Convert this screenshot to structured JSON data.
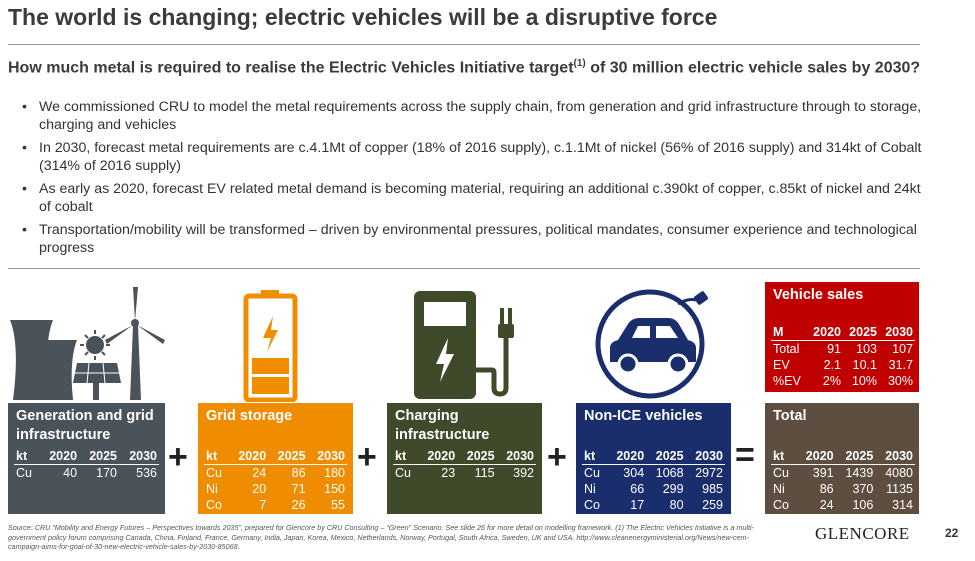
{
  "title": "The world is changing; electric vehicles will be a disruptive force",
  "subtitle_main": "How much metal is required to realise the Electric Vehicles Initiative target",
  "subtitle_sup": "(1)",
  "subtitle_rest": " of 30 million electric vehicle sales by 2030?",
  "bullets": [
    "We commissioned CRU to model the metal requirements across the supply chain, from generation and grid infrastructure through to storage, charging and vehicles",
    "In 2030, forecast metal requirements are c.4.1Mt of copper (18% of 2016 supply), c.1.1Mt of nickel (56% of 2016 supply) and 314kt of Cobalt (314% of 2016 supply)",
    "As early as 2020, forecast EV related metal demand is becoming material, requiring an additional c.390kt of copper, c.85kt of nickel and 24kt of cobalt",
    "Transportation/mobility will be transformed – driven by environmental pressures, political mandates, consumer experience and technological progress"
  ],
  "bullet_glyph": "•",
  "colors": {
    "generation": "#4a525a",
    "grid": "#f08c00",
    "charging": "#3f4a2a",
    "nonice": "#1a2e6e",
    "vehicle": "#c00000",
    "total": "#5e4e3f"
  },
  "panels": {
    "generation": {
      "title": "Generation and grid infrastructure",
      "header": [
        "kt",
        "2020",
        "2025",
        "2030"
      ],
      "rows": [
        [
          "Cu",
          "40",
          "170",
          "536"
        ]
      ]
    },
    "grid": {
      "title": "Grid storage",
      "header": [
        "kt",
        "2020",
        "2025",
        "2030"
      ],
      "rows": [
        [
          "Cu",
          "24",
          "86",
          "180"
        ],
        [
          "Ni",
          "20",
          "71",
          "150"
        ],
        [
          "Co",
          "7",
          "26",
          "55"
        ]
      ]
    },
    "charging": {
      "title": "Charging infrastructure",
      "header": [
        "kt",
        "2020",
        "2025",
        "2030"
      ],
      "rows": [
        [
          "Cu",
          "23",
          "115",
          "392"
        ]
      ]
    },
    "nonice": {
      "title": "Non-ICE vehicles",
      "header": [
        "kt",
        "2020",
        "2025",
        "2030"
      ],
      "rows": [
        [
          "Cu",
          "304",
          "1068",
          "2972"
        ],
        [
          "Ni",
          "66",
          "299",
          "985"
        ],
        [
          "Co",
          "17",
          "80",
          "259"
        ]
      ]
    },
    "vehicle": {
      "title": "Vehicle sales",
      "header": [
        "M",
        "2020",
        "2025",
        "2030"
      ],
      "rows": [
        [
          "Total",
          "91",
          "103",
          "107"
        ],
        [
          "EV",
          "2.1",
          "10.1",
          "31.7"
        ],
        [
          "%EV",
          "2%",
          "10%",
          "30%"
        ]
      ]
    },
    "total": {
      "title": "Total",
      "header": [
        "kt",
        "2020",
        "2025",
        "2030"
      ],
      "rows": [
        [
          "Cu",
          "391",
          "1439",
          "4080"
        ],
        [
          "Ni",
          "86",
          "370",
          "1135"
        ],
        [
          "Co",
          "24",
          "106",
          "314"
        ]
      ]
    }
  },
  "operators": {
    "plus": "+",
    "equals": "="
  },
  "footnote": "Source: CRU “Mobility and Energy Futures – Perspectives towards 2035”, prepared for Glencore by CRU Consulting – “Green” Scenario. See slide 26 for more detail on modelling framework. (1) The Electric Vehicles Initiative is a multi-government policy forum comprising Canada, China, Finland, France, Germany, India, Japan, Korea, Mexico, Netherlands, Norway, Portugal, South Africa, Sweden, UK and USA. http://www.cleanenergyministerial.org/News/new-cem-campaign-aims-for-goal-of-30-new-electric-vehicle-sales-by-2030-85068.",
  "logo": "GLENCORE",
  "page_number": "22",
  "icons": [
    "power-plant-icon",
    "sun-icon",
    "solar-panel-icon",
    "wind-turbine-icon",
    "battery-icon",
    "charging-station-icon",
    "electric-car-icon"
  ]
}
